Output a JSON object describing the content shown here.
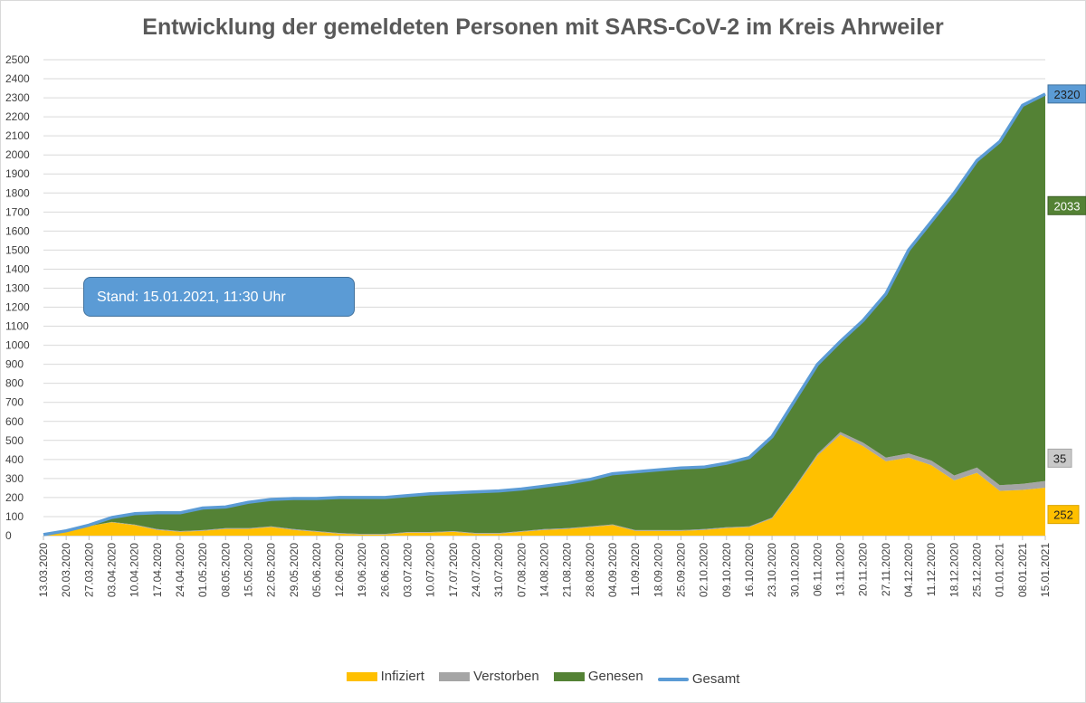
{
  "chart_data": {
    "type": "area",
    "title": "Entwicklung der gemeldeten Personen mit SARS-CoV-2 im Kreis Ahrweiler",
    "xlabel": "",
    "ylabel": "",
    "ylim": [
      0,
      2500
    ],
    "yticks": [
      0,
      100,
      200,
      300,
      400,
      500,
      600,
      700,
      800,
      900,
      1000,
      1100,
      1200,
      1300,
      1400,
      1500,
      1600,
      1700,
      1800,
      1900,
      2000,
      2100,
      2200,
      2300,
      2400,
      2500
    ],
    "x_start": "2020-03-13",
    "x_end": "2021-01-15",
    "xtick_labels": [
      "13.03.2020",
      "20.03.2020",
      "27.03.2020",
      "03.04.2020",
      "10.04.2020",
      "17.04.2020",
      "24.04.2020",
      "01.05.2020",
      "08.05.2020",
      "15.05.2020",
      "22.05.2020",
      "29.05.2020",
      "05.06.2020",
      "12.06.2020",
      "19.06.2020",
      "26.06.2020",
      "03.07.2020",
      "10.07.2020",
      "17.07.2020",
      "24.07.2020",
      "31.07.2020",
      "07.08.2020",
      "14.08.2020",
      "21.08.2020",
      "28.08.2020",
      "04.09.2020",
      "11.09.2020",
      "18.09.2020",
      "25.09.2020",
      "02.10.2020",
      "09.10.2020",
      "16.10.2020",
      "23.10.2020",
      "30.10.2020",
      "06.11.2020",
      "13.11.2020",
      "20.11.2020",
      "27.11.2020",
      "04.12.2020",
      "11.12.2020",
      "18.12.2020",
      "25.12.2020",
      "01.01.2021",
      "08.01.2021",
      "15.01.2021"
    ],
    "grid": true,
    "legend_position": "bottom",
    "stacking": "stacked",
    "x": [
      "2020-03-13",
      "2020-03-20",
      "2020-03-27",
      "2020-04-03",
      "2020-04-10",
      "2020-04-17",
      "2020-04-24",
      "2020-05-01",
      "2020-05-08",
      "2020-05-15",
      "2020-05-22",
      "2020-05-29",
      "2020-06-05",
      "2020-06-12",
      "2020-06-19",
      "2020-06-26",
      "2020-07-03",
      "2020-07-10",
      "2020-07-17",
      "2020-07-24",
      "2020-07-31",
      "2020-08-07",
      "2020-08-14",
      "2020-08-21",
      "2020-08-28",
      "2020-09-04",
      "2020-09-11",
      "2020-09-18",
      "2020-09-25",
      "2020-10-02",
      "2020-10-09",
      "2020-10-16",
      "2020-10-23",
      "2020-10-30",
      "2020-11-06",
      "2020-11-13",
      "2020-11-20",
      "2020-11-27",
      "2020-12-04",
      "2020-12-11",
      "2020-12-18",
      "2020-12-25",
      "2021-01-01",
      "2021-01-08",
      "2021-01-15"
    ],
    "series": [
      {
        "name": "Infiziert",
        "color": "#ffc000",
        "values": [
          5,
          25,
          50,
          70,
          55,
          30,
          20,
          25,
          35,
          35,
          45,
          30,
          20,
          10,
          5,
          5,
          15,
          15,
          20,
          10,
          10,
          20,
          30,
          35,
          45,
          55,
          25,
          25,
          25,
          30,
          40,
          45,
          90,
          250,
          420,
          530,
          470,
          390,
          410,
          370,
          290,
          330,
          235,
          240,
          252
        ]
      },
      {
        "name": "Verstorben",
        "color": "#a5a5a5",
        "values": [
          0,
          0,
          0,
          2,
          3,
          4,
          4,
          4,
          4,
          4,
          4,
          4,
          4,
          4,
          4,
          4,
          4,
          4,
          4,
          4,
          4,
          4,
          4,
          4,
          4,
          4,
          4,
          4,
          4,
          4,
          4,
          4,
          5,
          7,
          10,
          14,
          18,
          20,
          22,
          24,
          26,
          28,
          30,
          32,
          35
        ]
      },
      {
        "name": "Genesen",
        "color": "#548235",
        "values": [
          0,
          0,
          5,
          23,
          57,
          86,
          96,
          116,
          111,
          136,
          141,
          161,
          171,
          186,
          191,
          191,
          191,
          201,
          201,
          216,
          221,
          221,
          226,
          236,
          246,
          266,
          306,
          316,
          326,
          326,
          336,
          361,
          425,
          453,
          470,
          476,
          642,
          860,
          1068,
          1256,
          1484,
          1612,
          1805,
          1988,
          2033
        ]
      },
      {
        "name": "Gesamt",
        "color": "#5b9bd5",
        "type": "line",
        "values": [
          5,
          25,
          55,
          95,
          115,
          120,
          120,
          145,
          150,
          175,
          190,
          195,
          195,
          200,
          200,
          200,
          210,
          220,
          225,
          230,
          235,
          245,
          260,
          275,
          295,
          325,
          335,
          345,
          355,
          360,
          380,
          410,
          520,
          710,
          900,
          1020,
          1130,
          1270,
          1500,
          1650,
          1800,
          1970,
          2070,
          2260,
          2320
        ]
      }
    ],
    "end_labels": [
      "2320",
      "2033",
      "35",
      "252"
    ]
  },
  "annotation": {
    "stand": "Stand: 15.01.2021, 11:30 Uhr"
  },
  "legend": [
    {
      "label": "Infiziert",
      "color": "#ffc000",
      "kind": "area"
    },
    {
      "label": "Verstorben",
      "color": "#a5a5a5",
      "kind": "area"
    },
    {
      "label": "Genesen",
      "color": "#548235",
      "kind": "area"
    },
    {
      "label": "Gesamt",
      "color": "#5b9bd5",
      "kind": "line"
    }
  ]
}
